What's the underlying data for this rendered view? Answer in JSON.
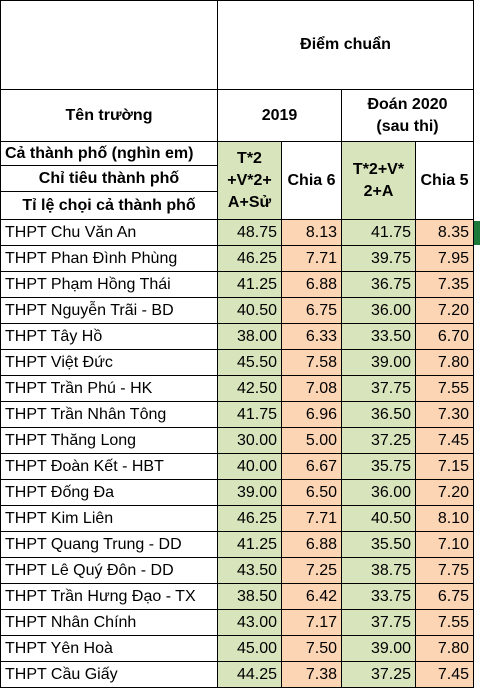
{
  "header": {
    "diem_chuan": "Điểm chuẩn",
    "ten_truong": "Tên trường",
    "year_2019": "2019",
    "doan_2020_line1": "Đoán 2020",
    "doan_2020_line2": "(sau thi)",
    "meta_rows": [
      "Cả thành phố (nghìn em)",
      "Chỉ tiêu thành phố",
      "Tỉ lệ chọi cả thành phố"
    ],
    "formula_2019_lines": [
      "T*2",
      "+V*2+",
      "A+Sử"
    ],
    "chia6": "Chia 6",
    "formula_2020_lines": [
      "T*2+V*",
      "2+A"
    ],
    "chia5": "Chia 5"
  },
  "rows": [
    {
      "name": "THPT Chu Văn An",
      "s2019": "48.75",
      "c6": "8.13",
      "s2020": "41.75",
      "c5": "8.35"
    },
    {
      "name": "THPT Phan Đình Phùng",
      "s2019": "46.25",
      "c6": "7.71",
      "s2020": "39.75",
      "c5": "7.95"
    },
    {
      "name": "THPT Phạm Hồng Thái",
      "s2019": "41.25",
      "c6": "6.88",
      "s2020": "36.75",
      "c5": "7.35"
    },
    {
      "name": "THPT Nguyễn Trãi - BD",
      "s2019": "40.50",
      "c6": "6.75",
      "s2020": "36.00",
      "c5": "7.20"
    },
    {
      "name": "THPT Tây Hồ",
      "s2019": "38.00",
      "c6": "6.33",
      "s2020": "33.50",
      "c5": "6.70"
    },
    {
      "name": "THPT Việt Đức",
      "s2019": "45.50",
      "c6": "7.58",
      "s2020": "39.00",
      "c5": "7.80"
    },
    {
      "name": "THPT Trần Phú - HK",
      "s2019": "42.50",
      "c6": "7.08",
      "s2020": "37.75",
      "c5": "7.55"
    },
    {
      "name": "THPT Trần Nhân Tông",
      "s2019": "41.75",
      "c6": "6.96",
      "s2020": "36.50",
      "c5": "7.30"
    },
    {
      "name": "THPT Thăng Long",
      "s2019": "30.00",
      "c6": "5.00",
      "s2020": "37.25",
      "c5": "7.45"
    },
    {
      "name": "THPT Đoàn Kết - HBT",
      "s2019": "40.00",
      "c6": "6.67",
      "s2020": "35.75",
      "c5": "7.15"
    },
    {
      "name": "THPT Đống Đa",
      "s2019": "39.00",
      "c6": "6.50",
      "s2020": "36.00",
      "c5": "7.20"
    },
    {
      "name": "THPT Kim Liên",
      "s2019": "46.25",
      "c6": "7.71",
      "s2020": "40.50",
      "c5": "8.10"
    },
    {
      "name": "THPT Quang Trung - DD",
      "s2019": "41.25",
      "c6": "6.88",
      "s2020": "35.50",
      "c5": "7.10"
    },
    {
      "name": "THPT Lê Quý Đôn - DD",
      "s2019": "43.50",
      "c6": "7.25",
      "s2020": "38.75",
      "c5": "7.75"
    },
    {
      "name": "THPT Trần Hưng Đạo - TX",
      "s2019": "38.50",
      "c6": "6.42",
      "s2020": "33.75",
      "c5": "6.75"
    },
    {
      "name": "THPT Nhân Chính",
      "s2019": "43.00",
      "c6": "7.17",
      "s2020": "37.75",
      "c5": "7.55"
    },
    {
      "name": "THPT Yên Hoà",
      "s2019": "45.00",
      "c6": "7.50",
      "s2020": "39.00",
      "c5": "7.80"
    },
    {
      "name": "THPT Cầu Giấy",
      "s2019": "44.25",
      "c6": "7.38",
      "s2020": "37.25",
      "c5": "7.45"
    }
  ],
  "colors": {
    "green": "#d8e4bc",
    "peach": "#fcd5b4",
    "selection_mark": "#1b7a3a"
  }
}
